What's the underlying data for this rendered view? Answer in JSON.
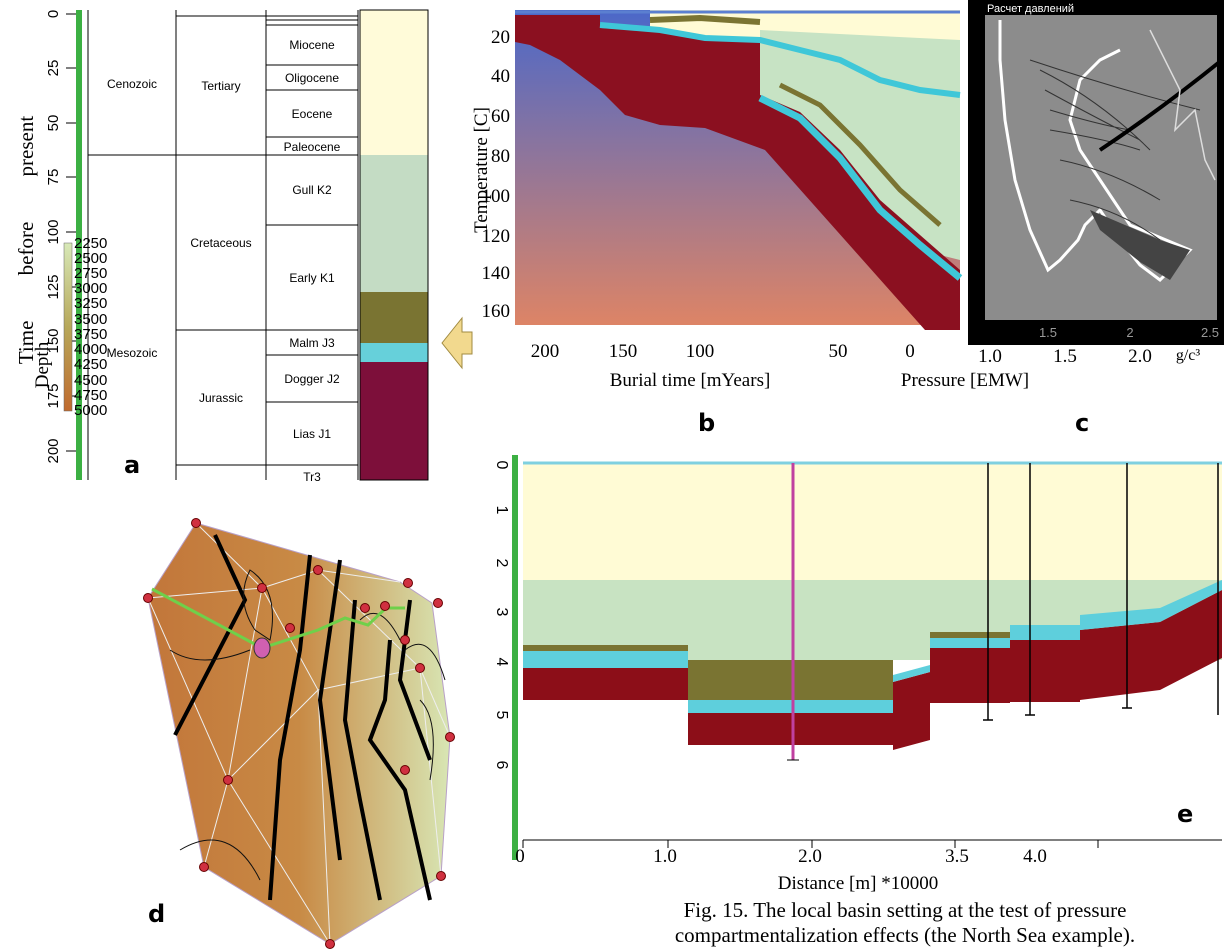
{
  "panel_a": {
    "letter": "a",
    "axis_label": "Time before present",
    "yticks": [
      "0",
      "25",
      "50",
      "75",
      "100",
      "125",
      "150",
      "175",
      "200"
    ],
    "eras": [
      "Cenozoic",
      "Mesozoic"
    ],
    "periods": [
      "Tertiary",
      "Cretaceous",
      "Jurassic"
    ],
    "epochs": [
      "Miocene",
      "Oligocene",
      "Eocene",
      "Paleocene",
      "Gull K2",
      "Early K1",
      "Malm J3",
      "Dogger J2",
      "Lias J1",
      "Tr3"
    ]
  },
  "panel_b": {
    "letter": "b",
    "y_label": "Temperature [C]",
    "x_label": "Burial time [mYears]",
    "yticks": [
      "20",
      "40",
      "60",
      "80",
      "100",
      "120",
      "140",
      "160"
    ],
    "xticks": [
      "200",
      "150",
      "100",
      "50",
      "0"
    ]
  },
  "panel_c": {
    "letter": "c",
    "header": "Расчет давлений",
    "x_label": "Pressure [EMW]",
    "xticks": [
      "1.0",
      "1.5",
      "2.0"
    ],
    "unit": "g/c³",
    "inner_ticks": [
      "1.5",
      "2",
      "2.5"
    ]
  },
  "panel_d": {
    "letter": "d",
    "legend_title": "Depth",
    "legend_ticks": [
      "2250",
      "2500",
      "2750",
      "3000",
      "3250",
      "3500",
      "3750",
      "4000",
      "4250",
      "4500",
      "4750",
      "5000"
    ]
  },
  "panel_e": {
    "letter": "e",
    "x_label": "Distance [m] *10000",
    "yticks": [
      "0",
      "1",
      "2",
      "3",
      "4",
      "5",
      "6"
    ],
    "xticks": [
      "0",
      "1.0",
      "2.0",
      "3.5",
      "4.0"
    ]
  },
  "caption": [
    "Fig. 15. The local basin setting at the test of pressure",
    "compartmentalization effects (the North Sea example)."
  ]
}
